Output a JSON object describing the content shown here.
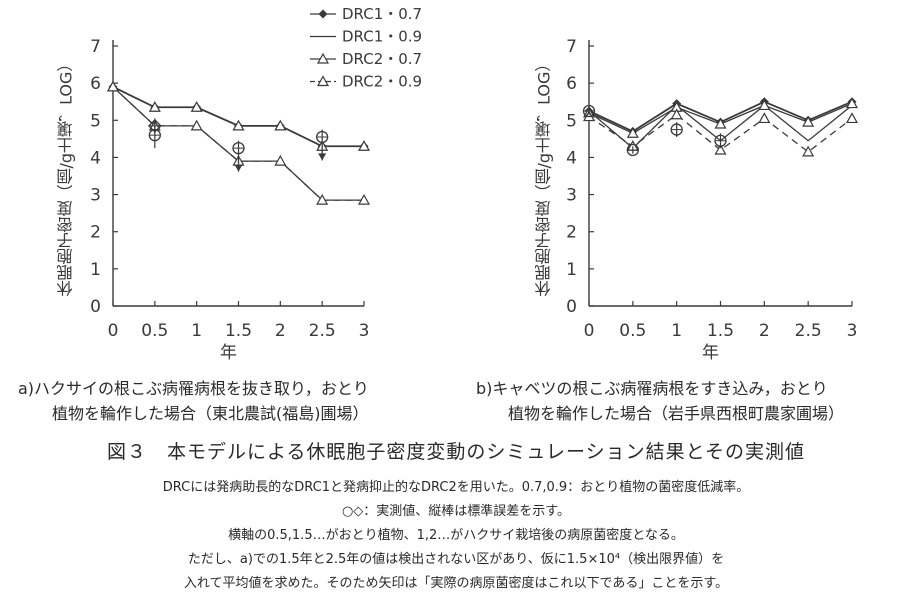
{
  "chart_data": [
    {
      "type": "line",
      "xlabel": "年",
      "ylabel": "休眠胞子密度（個/g土壌，LOG）",
      "xlim": [
        0,
        3
      ],
      "ylim": [
        0,
        7
      ],
      "x_ticks": [
        "0",
        "0.5",
        "1",
        "1.5",
        "2",
        "2.5",
        "3"
      ],
      "y_ticks": [
        "0",
        "1",
        "2",
        "3",
        "4",
        "5",
        "6",
        "7"
      ],
      "grid": false,
      "legend": "top-center",
      "x": [
        0,
        0.5,
        1,
        1.5,
        2,
        2.5,
        3
      ],
      "series": [
        {
          "name": "DRC1・0.7",
          "values": [
            5.9,
            5.35,
            5.35,
            4.85,
            4.85,
            4.3,
            4.3
          ]
        },
        {
          "name": "DRC1・0.9",
          "values": [
            5.9,
            4.85,
            4.85,
            3.9,
            3.9,
            2.85,
            2.85
          ]
        },
        {
          "name": "DRC2・0.7",
          "values": [
            5.9,
            5.35,
            5.35,
            4.85,
            4.85,
            4.3,
            4.3
          ]
        },
        {
          "name": "DRC2・0.9",
          "values": [
            5.9,
            4.85,
            4.85,
            3.9,
            3.9,
            2.85,
            2.85
          ]
        }
      ],
      "observed": [
        {
          "x": 0.5,
          "y": 4.6,
          "err": 0.35,
          "marker": "circle"
        },
        {
          "x": 0.5,
          "y": 4.85,
          "err": 0.2,
          "marker": "diamond"
        },
        {
          "x": 1.5,
          "y": 4.25,
          "err": 0.2,
          "marker": "circle",
          "upper_bound": true
        },
        {
          "x": 2.5,
          "y": 4.55,
          "err": 0.2,
          "marker": "circle",
          "upper_bound": true
        }
      ],
      "caption": "a)ハクサイの根こぶ病罹病根を抜き取り，おとり\n植物を輪作した場合（東北農試(福島)圃場）"
    },
    {
      "type": "line",
      "xlabel": "年",
      "ylabel": "休眠胞子密度（個/g土壌，LOG）",
      "xlim": [
        0,
        3
      ],
      "ylim": [
        0,
        7
      ],
      "x_ticks": [
        "0",
        "0.5",
        "1",
        "1.5",
        "2",
        "2.5",
        "3"
      ],
      "y_ticks": [
        "0",
        "1",
        "2",
        "3",
        "4",
        "5",
        "6",
        "7"
      ],
      "grid": false,
      "x": [
        0,
        0.5,
        1,
        1.5,
        2,
        2.5,
        3
      ],
      "series": [
        {
          "name": "DRC1・0.7",
          "values": [
            5.25,
            4.7,
            5.45,
            4.95,
            5.5,
            5.0,
            5.5
          ]
        },
        {
          "name": "DRC1・0.9",
          "values": [
            5.25,
            4.25,
            5.4,
            4.45,
            5.4,
            4.45,
            5.4
          ]
        },
        {
          "name": "DRC2・0.7",
          "values": [
            5.2,
            4.65,
            5.35,
            4.9,
            5.4,
            4.95,
            5.45
          ]
        },
        {
          "name": "DRC2・0.9",
          "values": [
            5.1,
            4.3,
            5.15,
            4.2,
            5.05,
            4.15,
            5.05
          ]
        }
      ],
      "observed": [
        {
          "x": 0,
          "y": 5.25,
          "err": 0.1,
          "marker": "circle"
        },
        {
          "x": 0.5,
          "y": 4.2,
          "err": 0.1,
          "marker": "circle"
        },
        {
          "x": 1,
          "y": 4.75,
          "err": 0.2,
          "marker": "circle"
        },
        {
          "x": 1.5,
          "y": 4.45,
          "err": 0.2,
          "marker": "circle"
        }
      ],
      "caption": "b)キャベツの根こぶ病罹病根をすき込み，おとり\n植物を輪作した場合（岩手県西根町農家圃場）"
    }
  ],
  "figure": {
    "title": "図３　本モデルによる休眠胞子密度変動のシミュレーション結果とその実測値",
    "notes": [
      "DRCには発病助長的なDRC1と発病抑止的なDRC2を用いた。0.7,0.9：おとり植物の菌密度低減率。",
      "○◇：実測値、縦棒は標準誤差を示す。",
      "横軸の0.5,1.5…がおとり植物、1,2…がハクサイ栽培後の病原菌密度となる。",
      "ただし、a)での1.5年と2.5年の値は検出されない区があり、仮に1.5×10⁴（検出限界値）を",
      "入れて平均値を求めた。そのため矢印は「実際の病原菌密度はこれ以下である」ことを示す。"
    ]
  }
}
